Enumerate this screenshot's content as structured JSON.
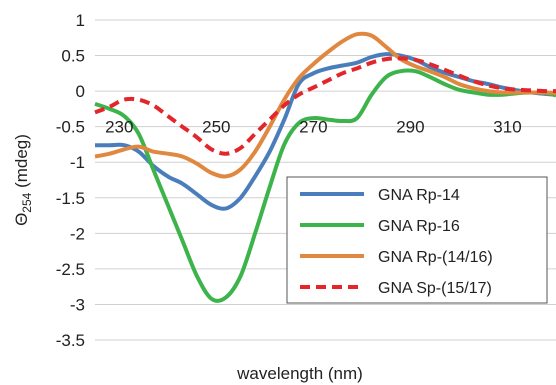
{
  "chart_data": {
    "type": "line",
    "xlabel": "wavelength (nm)",
    "ylabel_main": "Θ",
    "ylabel_sub": "254",
    "ylabel_unit": " (mdeg)",
    "xlim": [
      225,
      320
    ],
    "ylim": [
      -3.5,
      1
    ],
    "x_ticks": [
      230,
      250,
      270,
      290,
      310
    ],
    "y_ticks": [
      1,
      0.5,
      0,
      -0.5,
      -1,
      -1.5,
      -2,
      -2.5,
      -3,
      -3.5
    ],
    "grid": true,
    "legend_position": "bottom-right",
    "series": [
      {
        "name": "GNA Rp-14",
        "color": "#4a7ebb",
        "dash": "solid",
        "x": [
          225,
          228,
          231,
          234,
          237,
          240,
          243,
          246,
          249,
          252,
          255,
          258,
          261,
          264,
          267,
          270,
          273,
          276,
          279,
          282,
          285,
          288,
          291,
          294,
          297,
          300,
          303,
          306,
          309,
          312,
          315,
          318,
          320
        ],
        "y": [
          -0.76,
          -0.76,
          -0.76,
          -0.85,
          -1.05,
          -1.2,
          -1.3,
          -1.45,
          -1.6,
          -1.65,
          -1.5,
          -1.2,
          -0.85,
          -0.4,
          0.1,
          0.25,
          0.32,
          0.36,
          0.4,
          0.48,
          0.52,
          0.5,
          0.44,
          0.34,
          0.26,
          0.2,
          0.14,
          0.1,
          0.05,
          0.01,
          -0.02,
          -0.04,
          -0.05
        ]
      },
      {
        "name": "GNA Rp-16",
        "color": "#3cb44b",
        "dash": "solid",
        "x": [
          225,
          228,
          231,
          234,
          237,
          240,
          243,
          246,
          249,
          252,
          255,
          258,
          261,
          264,
          267,
          270,
          273,
          276,
          279,
          282,
          285,
          288,
          291,
          294,
          297,
          300,
          303,
          306,
          309,
          312,
          315,
          318,
          320
        ],
        "y": [
          -0.18,
          -0.25,
          -0.35,
          -0.6,
          -1.1,
          -1.6,
          -2.1,
          -2.6,
          -2.92,
          -2.9,
          -2.6,
          -2.0,
          -1.35,
          -0.75,
          -0.45,
          -0.38,
          -0.4,
          -0.42,
          -0.38,
          -0.05,
          0.2,
          0.28,
          0.28,
          0.2,
          0.1,
          0.02,
          -0.02,
          -0.05,
          -0.05,
          -0.03,
          -0.02,
          -0.03,
          -0.06
        ]
      },
      {
        "name": "GNA Rp-(14/16)",
        "color": "#e0883f",
        "dash": "solid",
        "x": [
          225,
          228,
          231,
          234,
          237,
          240,
          243,
          246,
          249,
          252,
          255,
          258,
          261,
          264,
          267,
          270,
          273,
          276,
          279,
          282,
          285,
          288,
          291,
          294,
          297,
          300,
          303,
          306,
          309,
          312,
          315,
          318,
          320
        ],
        "y": [
          -0.92,
          -0.88,
          -0.82,
          -0.78,
          -0.85,
          -0.88,
          -0.92,
          -1.02,
          -1.15,
          -1.2,
          -1.1,
          -0.85,
          -0.5,
          -0.12,
          0.18,
          0.38,
          0.55,
          0.7,
          0.8,
          0.78,
          0.62,
          0.45,
          0.35,
          0.28,
          0.2,
          0.1,
          0.04,
          0.0,
          -0.02,
          -0.02,
          -0.02,
          -0.02,
          -0.03
        ]
      },
      {
        "name": "GNA Sp-(15/17)",
        "color": "#e3262b",
        "dash": "dashed",
        "x": [
          225,
          228,
          231,
          234,
          237,
          240,
          243,
          246,
          249,
          252,
          255,
          258,
          261,
          264,
          267,
          270,
          273,
          276,
          279,
          282,
          285,
          288,
          291,
          294,
          297,
          300,
          303,
          306,
          309,
          312,
          315,
          318,
          320
        ],
        "y": [
          -0.3,
          -0.22,
          -0.12,
          -0.12,
          -0.2,
          -0.35,
          -0.5,
          -0.65,
          -0.82,
          -0.88,
          -0.8,
          -0.6,
          -0.4,
          -0.2,
          -0.05,
          0.05,
          0.15,
          0.25,
          0.32,
          0.4,
          0.45,
          0.46,
          0.44,
          0.38,
          0.3,
          0.22,
          0.14,
          0.08,
          0.04,
          0.02,
          0.01,
          0.0,
          0.0
        ]
      }
    ]
  }
}
